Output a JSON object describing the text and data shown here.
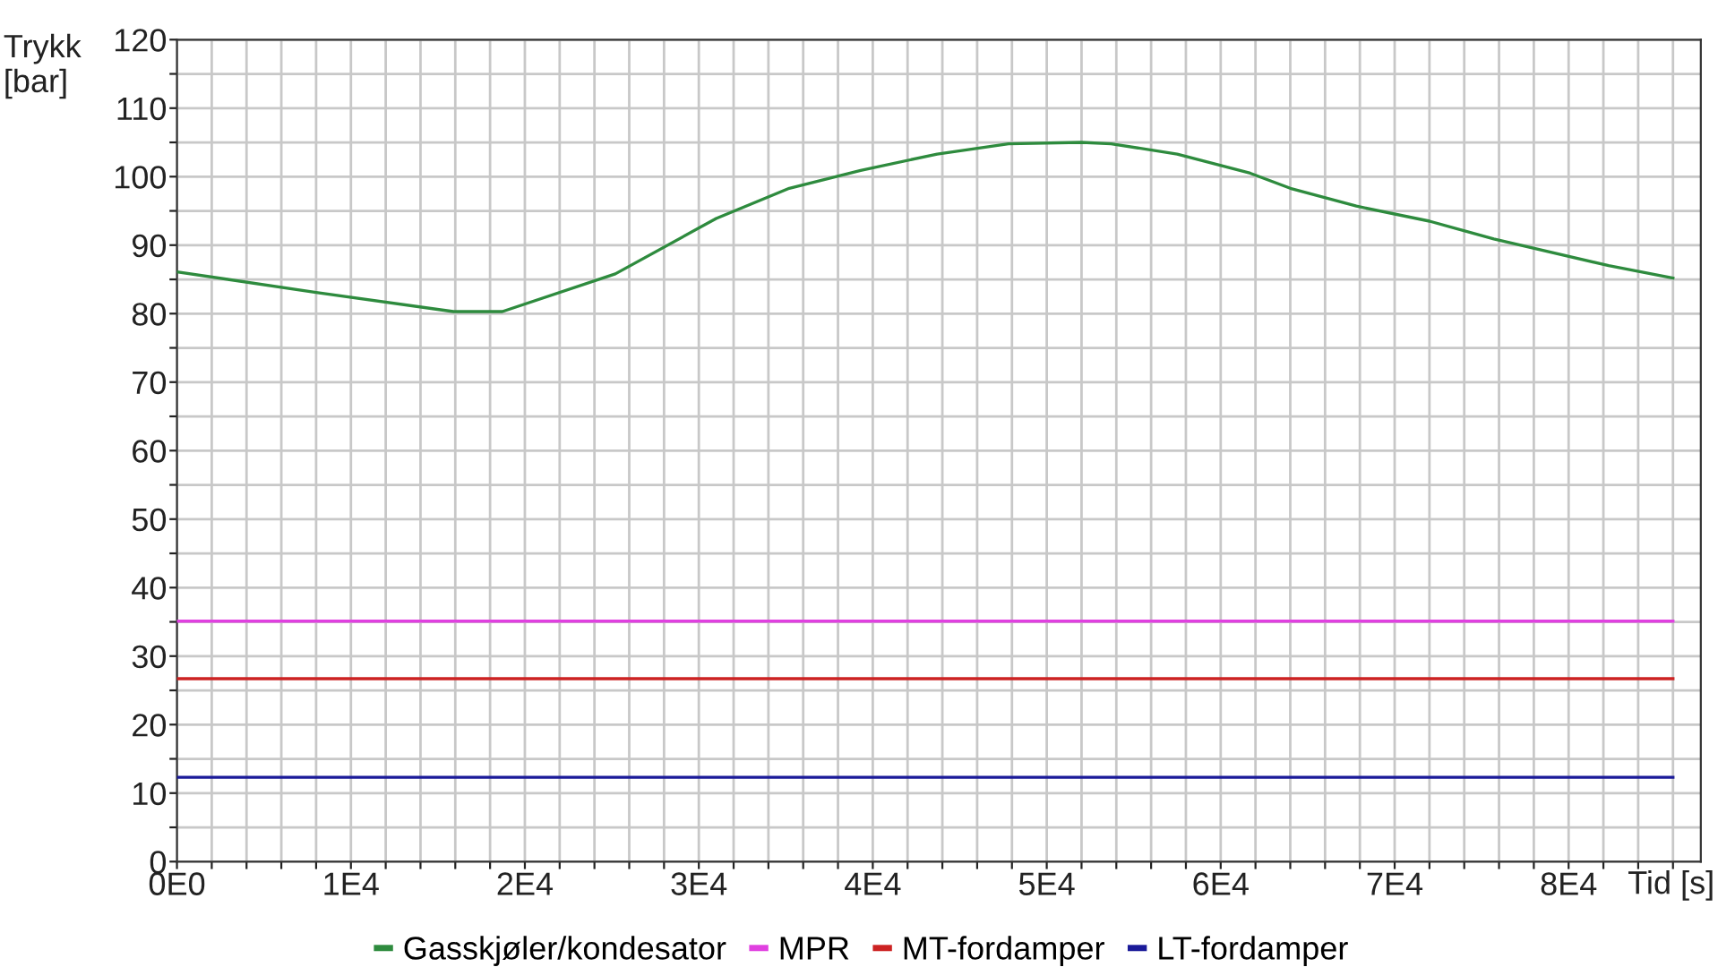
{
  "chart_data": {
    "type": "line",
    "xlabel": "Tid [s]",
    "ylabel": "Trykk\n[bar]",
    "xlim": [
      0,
      87600
    ],
    "ylim": [
      0,
      120
    ],
    "xticks": [
      {
        "value": 0,
        "label": "0E0"
      },
      {
        "value": 2000,
        "label": null
      },
      {
        "value": 4000,
        "label": null
      },
      {
        "value": 6000,
        "label": null
      },
      {
        "value": 8000,
        "label": null
      },
      {
        "value": 10000,
        "label": "1E4"
      },
      {
        "value": 12000,
        "label": null
      },
      {
        "value": 14000,
        "label": null
      },
      {
        "value": 16000,
        "label": null
      },
      {
        "value": 18000,
        "label": null
      },
      {
        "value": 20000,
        "label": "2E4"
      },
      {
        "value": 22000,
        "label": null
      },
      {
        "value": 24000,
        "label": null
      },
      {
        "value": 26000,
        "label": null
      },
      {
        "value": 28000,
        "label": null
      },
      {
        "value": 30000,
        "label": "3E4"
      },
      {
        "value": 32000,
        "label": null
      },
      {
        "value": 34000,
        "label": null
      },
      {
        "value": 36000,
        "label": null
      },
      {
        "value": 38000,
        "label": null
      },
      {
        "value": 40000,
        "label": "4E4"
      },
      {
        "value": 42000,
        "label": null
      },
      {
        "value": 44000,
        "label": null
      },
      {
        "value": 46000,
        "label": null
      },
      {
        "value": 48000,
        "label": null
      },
      {
        "value": 50000,
        "label": "5E4"
      },
      {
        "value": 52000,
        "label": null
      },
      {
        "value": 54000,
        "label": null
      },
      {
        "value": 56000,
        "label": null
      },
      {
        "value": 58000,
        "label": null
      },
      {
        "value": 60000,
        "label": "6E4"
      },
      {
        "value": 62000,
        "label": null
      },
      {
        "value": 64000,
        "label": null
      },
      {
        "value": 66000,
        "label": null
      },
      {
        "value": 68000,
        "label": null
      },
      {
        "value": 70000,
        "label": "7E4"
      },
      {
        "value": 72000,
        "label": null
      },
      {
        "value": 74000,
        "label": null
      },
      {
        "value": 76000,
        "label": null
      },
      {
        "value": 78000,
        "label": null
      },
      {
        "value": 80000,
        "label": "8E4"
      },
      {
        "value": 82000,
        "label": null
      },
      {
        "value": 84000,
        "label": null
      },
      {
        "value": 86000,
        "label": null
      }
    ],
    "yticks": [
      0,
      {
        "value": 5,
        "label": null
      },
      10,
      {
        "value": 15,
        "label": null
      },
      20,
      {
        "value": 25,
        "label": null
      },
      30,
      {
        "value": 35,
        "label": null
      },
      40,
      {
        "value": 45,
        "label": null
      },
      50,
      {
        "value": 55,
        "label": null
      },
      60,
      {
        "value": 65,
        "label": null
      },
      70,
      {
        "value": 75,
        "label": null
      },
      80,
      {
        "value": 85,
        "label": null
      },
      90,
      {
        "value": 95,
        "label": null
      },
      100,
      {
        "value": 105,
        "label": null
      },
      110,
      {
        "value": 115,
        "label": null
      },
      120
    ],
    "grid": true,
    "legend": "bottom",
    "marker": "none",
    "line_style": "solid",
    "series": [
      {
        "name": "Gasskjøler/kondesator",
        "color": "#2e8b3e",
        "x": [
          0,
          8000,
          15900,
          18700,
          25200,
          31000,
          35200,
          39300,
          43700,
          47800,
          52000,
          53700,
          57500,
          61700,
          64000,
          67800,
          72000,
          75700,
          82300,
          86000
        ],
        "values": [
          86.1,
          83.1,
          80.3,
          80.3,
          85.8,
          93.9,
          98.3,
          100.9,
          103.3,
          104.8,
          105.0,
          104.8,
          103.3,
          100.5,
          98.3,
          95.7,
          93.5,
          90.9,
          87.0,
          85.2
        ]
      },
      {
        "name": "MPR",
        "color": "#e040e0",
        "x": [
          0,
          86000
        ],
        "values": [
          35.1,
          35.1
        ]
      },
      {
        "name": "MT-fordamper",
        "color": "#cc2222",
        "x": [
          0,
          86000
        ],
        "values": [
          26.7,
          26.7
        ]
      },
      {
        "name": "LT-fordamper",
        "color": "#1a1a99",
        "x": [
          0,
          86000
        ],
        "values": [
          12.3,
          12.3
        ]
      }
    ]
  }
}
